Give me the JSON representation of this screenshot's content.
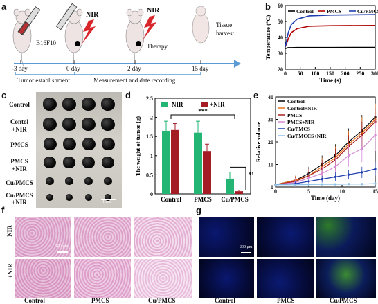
{
  "panels": {
    "a": "a",
    "b": "b",
    "c": "c",
    "d": "d",
    "e": "e",
    "f": "f",
    "g": "g"
  },
  "panel_a": {
    "cells": "B16F10",
    "nir1": "NIR",
    "nir2": "NIR",
    "tissue": "Tissue\nharvest",
    "timeline": [
      "-3 day",
      "0 day",
      "2 day",
      "15 day"
    ],
    "phase1": "Tumor establishment",
    "phase2": "Measurement and date recording",
    "therapy": "Therapy"
  },
  "panel_c": {
    "rows": [
      "Control",
      "Contol\n+NIR",
      "PMCS",
      "PMCS\n+NIR",
      "Cu/PMCS",
      "Cu/PMCS\n+NIR"
    ],
    "scale": "1 cm"
  },
  "panel_f": {
    "rows": [
      "-NIR",
      "+NIR"
    ],
    "cols": [
      "Control",
      "PMCS",
      "Cu/PMCS"
    ],
    "scale": "200 μm"
  },
  "panel_g": {
    "cols": [
      "Control",
      "PMCS",
      "Cu/PMCS"
    ],
    "scale": "200 μm"
  },
  "chart_data": [
    {
      "panel": "b",
      "type": "line",
      "xlabel": "Time (s)",
      "ylabel": "Temperature (°C)",
      "xlim": [
        0,
        300
      ],
      "ylim": [
        20,
        60
      ],
      "xticks": [
        0,
        50,
        100,
        150,
        200,
        250,
        300
      ],
      "yticks": [
        20,
        30,
        40,
        50,
        60
      ],
      "legend": "top",
      "series": [
        {
          "name": "Control",
          "color": "#000000",
          "x": [
            0,
            10,
            20,
            40,
            80,
            150,
            300
          ],
          "y": [
            33,
            33.5,
            33.5,
            33.6,
            33.6,
            33.6,
            33.7
          ]
        },
        {
          "name": "PMCS",
          "color": "#b00000",
          "x": [
            0,
            10,
            20,
            40,
            80,
            150,
            300
          ],
          "y": [
            34,
            39,
            43,
            45.5,
            47,
            47.3,
            47.5
          ]
        },
        {
          "name": "Cu/PMCS",
          "color": "#1f3fb0",
          "x": [
            0,
            10,
            20,
            40,
            80,
            150,
            300
          ],
          "y": [
            34,
            43,
            48,
            51.5,
            53.5,
            54,
            54.3
          ]
        }
      ]
    },
    {
      "panel": "d",
      "type": "bar",
      "ylabel": "The weight of tumor (g)",
      "categories": [
        "Control",
        "PMCS",
        "Cu/PMCS"
      ],
      "ylim": [
        0,
        2.5
      ],
      "yticks": [
        0,
        0.5,
        1.0,
        1.5,
        2.0,
        2.5
      ],
      "legend": "top",
      "series": [
        {
          "name": "-NIR",
          "color": "#22b573",
          "values": [
            1.65,
            1.6,
            0.4
          ],
          "errors": [
            0.25,
            0.3,
            0.17
          ]
        },
        {
          "name": "+NIR",
          "color": "#a51d24",
          "values": [
            1.67,
            1.12,
            0.07
          ],
          "errors": [
            0.17,
            0.18,
            0.03
          ]
        }
      ],
      "annotations": [
        "***",
        "**"
      ]
    },
    {
      "panel": "e",
      "type": "line",
      "xlabel": "Time (day)",
      "ylabel": "Relative volume",
      "xlim": [
        0,
        15
      ],
      "ylim": [
        0,
        40
      ],
      "xticks": [
        0,
        5,
        10,
        15
      ],
      "yticks": [
        0,
        10,
        20,
        30,
        40
      ],
      "legend": "top-left",
      "series": [
        {
          "name": "Control",
          "color": "#000000",
          "x": [
            0,
            3,
            5,
            7,
            9,
            11,
            13,
            15
          ],
          "y": [
            1,
            3,
            6,
            10,
            14,
            20,
            25,
            31
          ],
          "err": [
            0,
            2,
            3,
            4,
            5,
            6,
            7,
            7
          ]
        },
        {
          "name": "Control+NIR",
          "color": "#e8701a",
          "x": [
            0,
            3,
            5,
            7,
            9,
            11,
            13,
            15
          ],
          "y": [
            1,
            3,
            5,
            9,
            13,
            19,
            24,
            30
          ],
          "err": [
            0,
            2,
            3,
            4,
            5,
            6,
            7,
            7
          ]
        },
        {
          "name": "PMCS",
          "color": "#a52020",
          "x": [
            0,
            3,
            5,
            7,
            9,
            11,
            13,
            15
          ],
          "y": [
            1,
            2.5,
            5,
            8,
            12,
            18,
            23,
            29
          ],
          "err": [
            0,
            2,
            3,
            4,
            5,
            5,
            6,
            6
          ]
        },
        {
          "name": "PMCS+NIR",
          "color": "#d58bd6",
          "x": [
            0,
            3,
            5,
            7,
            9,
            11,
            13,
            15
          ],
          "y": [
            1,
            2,
            4,
            6,
            9,
            14,
            17,
            23
          ],
          "err": [
            0,
            2,
            2,
            3,
            4,
            5,
            6,
            7
          ]
        },
        {
          "name": "Cu/PMCS",
          "color": "#1f3fb0",
          "x": [
            0,
            3,
            5,
            7,
            9,
            11,
            13,
            15
          ],
          "y": [
            1,
            1.5,
            2.5,
            3.5,
            4.5,
            5.5,
            6.5,
            8
          ],
          "err": [
            0,
            1,
            1,
            1.5,
            2,
            2,
            2.5,
            3
          ]
        },
        {
          "name": "Cu/PMCCS+NIR",
          "color": "#8ec3e8",
          "x": [
            0,
            3,
            5,
            7,
            9,
            11,
            13,
            15
          ],
          "y": [
            1,
            1,
            1.1,
            1.2,
            1.2,
            1.3,
            1.3,
            1.5
          ],
          "err": [
            0,
            0.3,
            0.3,
            0.3,
            0.3,
            0.3,
            0.3,
            0.3
          ]
        }
      ]
    }
  ]
}
